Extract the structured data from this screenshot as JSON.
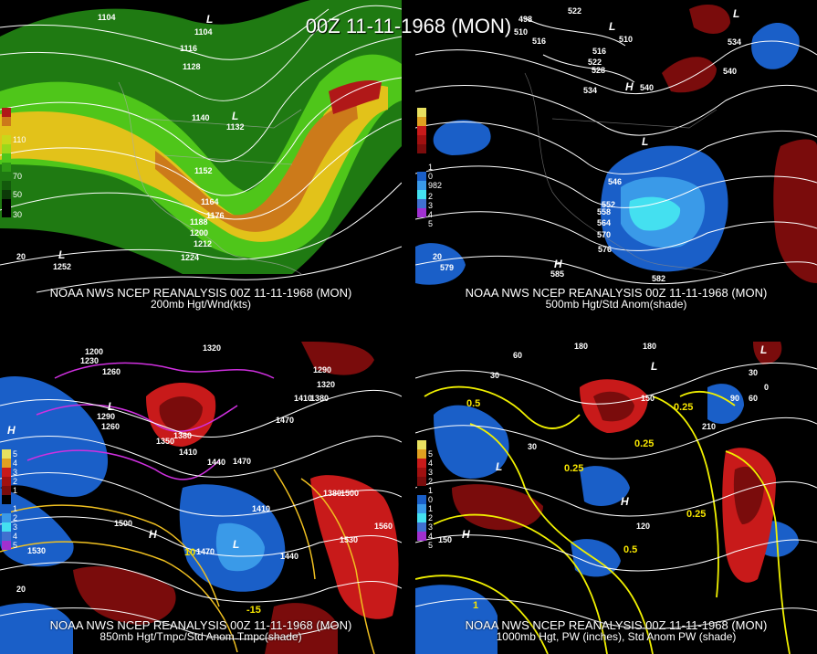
{
  "title": "00Z 11-11-1968 (MON)",
  "colors": {
    "wind_slow": "#1f7a12",
    "wind_mid": "#4fc61a",
    "wind_fast": "#e2c21a",
    "wind_jet": "#cc7a1a",
    "wind_max": "#b01818",
    "anom_pos1": "#7a0c0c",
    "anom_pos2": "#c81a1a",
    "anom_pos3": "#e84d4d",
    "anom_neg1": "#1a5fc8",
    "anom_neg2": "#3a9ae8",
    "anom_neg3": "#44e0f0",
    "contour": "#ffffff",
    "temp_contour": "#f0c020",
    "magenta": "#d030e0",
    "pw_contour": "#f0f000"
  },
  "panels": [
    {
      "caption_line1": "NOAA NWS NCEP REANALYSIS 00Z 11-11-1968 (MON)",
      "caption_line2": "200mb Hgt/Wnd(kts)",
      "legend": [
        "110",
        "70",
        "50",
        "30"
      ],
      "labels": [
        "1104",
        "1104",
        "1116",
        "1128",
        "1140",
        "1132",
        "1152",
        "1164",
        "1176",
        "1188",
        "1200",
        "1212",
        "1224",
        "1252",
        "L",
        "L",
        "L",
        "20"
      ]
    },
    {
      "caption_line1": "NOAA NWS NCEP REANALYSIS 00Z 11-11-1968 (MON)",
      "caption_line2": "500mb Hgt/Std Anom(shade)",
      "legend": [
        "1",
        "0",
        "982",
        "2",
        "3",
        "4",
        "5"
      ],
      "labels": [
        "522",
        "498",
        "510",
        "516",
        "510",
        "516",
        "522",
        "528",
        "534",
        "540",
        "546",
        "534",
        "540",
        "552",
        "558",
        "564",
        "570",
        "576",
        "582",
        "579",
        "585",
        "20",
        "H",
        "H",
        "L",
        "L",
        "L"
      ]
    },
    {
      "caption_line1": "NOAA NWS NCEP REANALYSIS 00Z 11-11-1968 (MON)",
      "caption_line2": "850mb Hgt/Tmpc/Std Anom Tmpc(shade)",
      "legend": [
        "5",
        "4",
        "3",
        "2",
        "1",
        "1",
        "2",
        "3",
        "4",
        "5"
      ],
      "labels": [
        "1200",
        "1230",
        "1260",
        "1290",
        "1260",
        "1320",
        "1350",
        "1380",
        "1410",
        "1440",
        "1470",
        "1500",
        "1530",
        "1560",
        "1410",
        "1440",
        "1470",
        "1500",
        "1530",
        "1380",
        "1290",
        "1320",
        "1410",
        "1380",
        "1470",
        "20",
        "H",
        "H",
        "L",
        "L",
        "-15",
        "10"
      ]
    },
    {
      "caption_line1": "NOAA NWS NCEP REANALYSIS 00Z 11-11-1968 (MON)",
      "caption_line2": "1000mb Hgt, PW (inches), Std Anom PW (shade)",
      "legend": [
        "5",
        "4",
        "3",
        "2",
        "1",
        "0",
        "1",
        "2",
        "3",
        "4",
        "5"
      ],
      "labels": [
        "30",
        "60",
        "30",
        "180",
        "180",
        "150",
        "120",
        "210",
        "150",
        "90",
        "60",
        "30",
        "0",
        "0.5",
        "0.25",
        "0.25",
        "0.25",
        "0.5",
        "0.25",
        "1",
        "H",
        "H",
        "L",
        "L",
        "L"
      ]
    }
  ]
}
